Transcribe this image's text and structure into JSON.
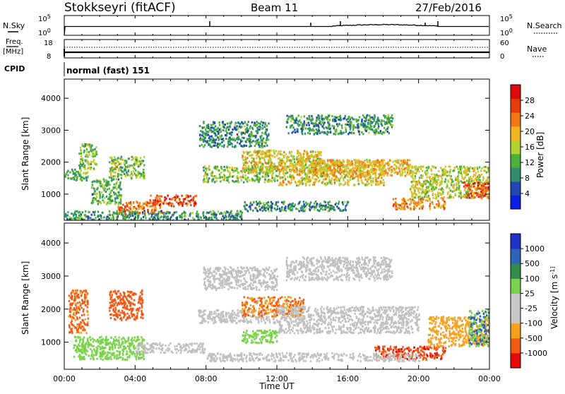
{
  "header": {
    "station": "Stokkseyri (fitACF)",
    "beam": "Beam 11",
    "date": "27/Feb/2016"
  },
  "top_panels": {
    "nsky": {
      "label": "N.Sky",
      "ticks": [
        "10^5",
        "10^0"
      ],
      "right_label": "N.Search",
      "right_ticks": [
        "10^5",
        "10^0"
      ]
    },
    "freq": {
      "label_line1": "Freq.",
      "label_line2": "[MHz]",
      "ticks": [
        "18",
        "8"
      ],
      "right_label": "Nave",
      "right_ticks": [
        "60",
        "0"
      ]
    },
    "cpid": {
      "label": "CPID",
      "value": "normal (fast) 151"
    }
  },
  "colors": {
    "power": [
      "#0a1ee6",
      "#1e46b4",
      "#2f8c6e",
      "#4caf3c",
      "#b4d232",
      "#f0b41e",
      "#f07814",
      "#e63c0a",
      "#dc0a0a"
    ],
    "velocity": [
      "#e60a0a",
      "#f05a14",
      "#f5a01e",
      "#c8c8c8",
      "#c8c8c8",
      "#7ad24a",
      "#2f8c4a",
      "#2f64b4",
      "#1e32c8"
    ],
    "ground_scatter": "#c0c0c0"
  },
  "chart_data": [
    {
      "type": "heatmap",
      "panel": "power",
      "xlabel": "",
      "ylabel": "Slant Range [km]",
      "xlim": [
        0,
        24
      ],
      "ylim": [
        180,
        4600
      ],
      "yticks": [
        "1000",
        "2000",
        "3000",
        "4000"
      ],
      "colorbar": {
        "label": "Power [dB]",
        "ticks": [
          "4",
          "8",
          "12",
          "16",
          "20",
          "24",
          "28"
        ],
        "range": [
          0,
          32
        ]
      },
      "regions": [
        {
          "t": [
            0.0,
            1.3
          ],
          "r": [
            1450,
            1800
          ],
          "v": 12
        },
        {
          "t": [
            0.8,
            1.8
          ],
          "r": [
            1800,
            2600
          ],
          "v": 14
        },
        {
          "t": [
            1.5,
            3.2
          ],
          "r": [
            700,
            1500
          ],
          "v": 12
        },
        {
          "t": [
            2.5,
            4.5
          ],
          "r": [
            1500,
            2200
          ],
          "v": 14
        },
        {
          "t": [
            3.0,
            5.5
          ],
          "r": [
            400,
            800
          ],
          "v": 24
        },
        {
          "t": [
            4.8,
            7.4
          ],
          "r": [
            650,
            1000
          ],
          "v": 26
        },
        {
          "t": [
            0.0,
            10.0
          ],
          "r": [
            200,
            500
          ],
          "v": 10
        },
        {
          "t": [
            7.6,
            11.5
          ],
          "r": [
            2500,
            3300
          ],
          "v": 10
        },
        {
          "t": [
            7.8,
            12.0
          ],
          "r": [
            1400,
            1900
          ],
          "v": 14
        },
        {
          "t": [
            10.0,
            14.5
          ],
          "r": [
            1700,
            2400
          ],
          "v": 18
        },
        {
          "t": [
            12.0,
            18.0
          ],
          "r": [
            1300,
            2100
          ],
          "v": 18
        },
        {
          "t": [
            14.0,
            19.5
          ],
          "r": [
            1600,
            2100
          ],
          "v": 20
        },
        {
          "t": [
            12.5,
            18.5
          ],
          "r": [
            2900,
            3500
          ],
          "v": 10
        },
        {
          "t": [
            18.5,
            21.5
          ],
          "r": [
            550,
            900
          ],
          "v": 22
        },
        {
          "t": [
            19.5,
            24.0
          ],
          "r": [
            900,
            1900
          ],
          "v": 16
        },
        {
          "t": [
            22.5,
            24.0
          ],
          "r": [
            900,
            1400
          ],
          "v": 26
        },
        {
          "t": [
            10.0,
            16.0
          ],
          "r": [
            500,
            800
          ],
          "v": 10
        }
      ]
    },
    {
      "type": "heatmap",
      "panel": "velocity",
      "xlabel": "Time UT",
      "ylabel": "Slant Range [km]",
      "xlim": [
        0,
        24
      ],
      "ylim": [
        180,
        4600
      ],
      "xticks": [
        "00:00",
        "04:00",
        "08:00",
        "12:00",
        "16:00",
        "20:00",
        "00:00"
      ],
      "yticks": [
        "1000",
        "2000",
        "3000",
        "4000"
      ],
      "colorbar": {
        "label": "Velocity [m s^-1]",
        "ticks": [
          "1000",
          "500",
          "100",
          "25",
          "-25",
          "-100",
          "-500",
          "-1000"
        ]
      },
      "regions": [
        {
          "t": [
            0.2,
            1.3
          ],
          "r": [
            1300,
            2600
          ],
          "v": -400
        },
        {
          "t": [
            2.5,
            4.4
          ],
          "r": [
            1700,
            2600
          ],
          "v": -500
        },
        {
          "t": [
            0.5,
            4.5
          ],
          "r": [
            500,
            1200
          ],
          "v": 200
        },
        {
          "t": [
            4.0,
            8.0
          ],
          "r": [
            700,
            1000
          ],
          "g": true
        },
        {
          "t": [
            7.8,
            12.0
          ],
          "r": [
            2600,
            3300
          ],
          "g": true
        },
        {
          "t": [
            7.5,
            12.0
          ],
          "r": [
            1600,
            2000
          ],
          "g": true
        },
        {
          "t": [
            10.0,
            13.5
          ],
          "r": [
            1800,
            2400
          ],
          "v": -300
        },
        {
          "t": [
            12.0,
            20.0
          ],
          "r": [
            1300,
            2100
          ],
          "g": true
        },
        {
          "t": [
            12.5,
            18.5
          ],
          "r": [
            2900,
            3600
          ],
          "g": true
        },
        {
          "t": [
            10.0,
            12.0
          ],
          "r": [
            1000,
            1400
          ],
          "v": 150
        },
        {
          "t": [
            17.5,
            21.5
          ],
          "r": [
            500,
            900
          ],
          "v": -600
        },
        {
          "t": [
            20.5,
            24.0
          ],
          "r": [
            900,
            1800
          ],
          "v": -200
        },
        {
          "t": [
            22.8,
            24.0
          ],
          "r": [
            900,
            2000
          ],
          "v": 300
        },
        {
          "t": [
            8.0,
            20.0
          ],
          "r": [
            450,
            700
          ],
          "g": true
        }
      ]
    }
  ]
}
